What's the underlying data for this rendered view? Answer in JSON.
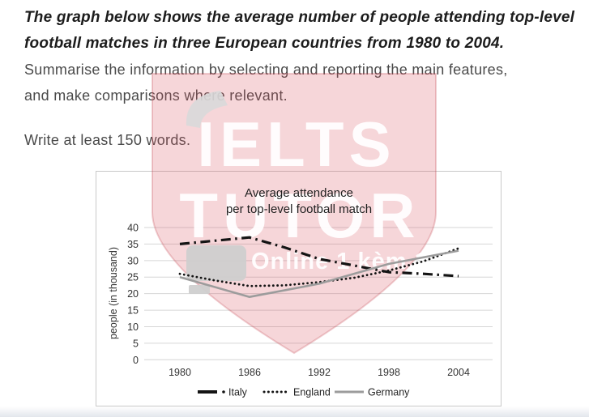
{
  "page": {
    "background": "#ffffff",
    "bottom_band_color": "#e3e6ec"
  },
  "task": {
    "prompt_line1": "The graph below shows the average number of people attending top-level",
    "prompt_line2": "football matches in three European countries from 1980 to 2004.",
    "instruction_line1": "Summarise the information by selecting and reporting the main features,",
    "instruction_line2": "and make comparisons where relevant.",
    "word_requirement": "Write at least 150 words."
  },
  "watermark": {
    "brand_top": "IELTS",
    "brand_bottom": "TUTOR",
    "tagline": "Online 1 kèm 1",
    "shield_fill": "rgba(216,84,95,0.24)",
    "shield_stroke": "rgba(190,60,72,0.25)",
    "text_color": "rgba(255,255,255,0.93)",
    "icon_gray": "#cfcfcf"
  },
  "chart_data": {
    "type": "line",
    "title_line1": "Average attendance",
    "title_line2": "per top-level football match",
    "ylabel": "people (in thousand)",
    "xlabel": "",
    "x_ticks": [
      1980,
      1986,
      1992,
      1998,
      2004
    ],
    "y_ticks": [
      0,
      5,
      10,
      15,
      20,
      25,
      30,
      35,
      40
    ],
    "xlim": [
      1980,
      2004
    ],
    "ylim": [
      0,
      40
    ],
    "grid": true,
    "legend_position": "bottom",
    "series": [
      {
        "name": "Italy",
        "style": "dash-dot",
        "color": "#141414",
        "x": [
          1980,
          1983,
          1986,
          1989,
          1992,
          1995,
          1998,
          2001,
          2004
        ],
        "values": [
          35,
          36,
          37,
          34,
          30.5,
          28.5,
          26.5,
          26,
          25.3
        ]
      },
      {
        "name": "England",
        "style": "dotted",
        "color": "#141414",
        "x": [
          1980,
          1983,
          1986,
          1989,
          1992,
          1995,
          1998,
          2001,
          2004
        ],
        "values": [
          26,
          24,
          22.3,
          22.5,
          23.5,
          24.8,
          27,
          29.8,
          33.7
        ]
      },
      {
        "name": "Germany",
        "style": "solid",
        "color": "#9c9c9c",
        "x": [
          1980,
          1986,
          1992,
          1998,
          2004
        ],
        "values": [
          25,
          19,
          23,
          29,
          33
        ]
      }
    ]
  }
}
